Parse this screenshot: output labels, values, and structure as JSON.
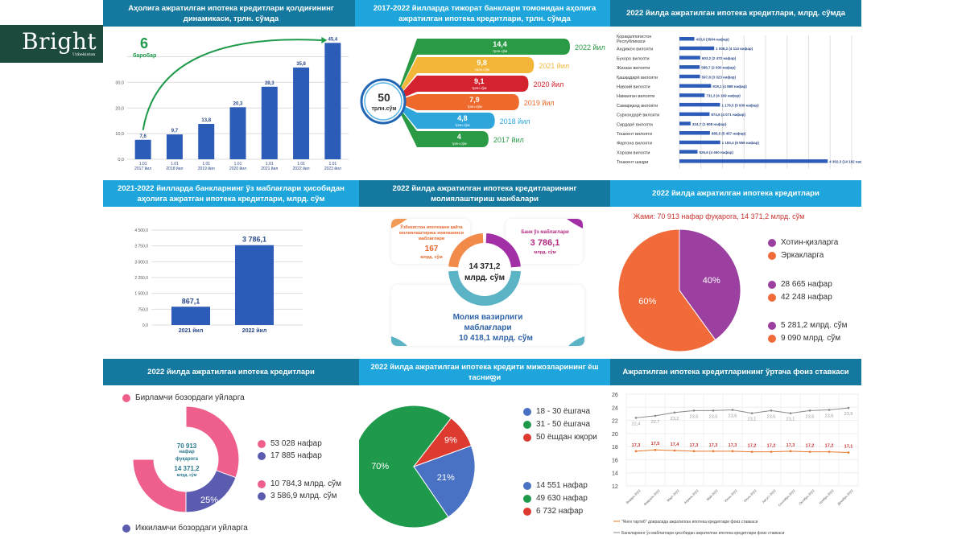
{
  "brand": {
    "name": "Bright",
    "sub": "Uzbekistan"
  },
  "colors": {
    "header_dark": "#15799f",
    "header_light": "#1ea6dc",
    "bar_blue": "#2d5cb8",
    "green": "#1e9a4a"
  },
  "panels": {
    "p1": {
      "title": "Аҳолига ажратилган ипотека кредитлари қолдиғининг динамикаси, трлн. сўмда",
      "growth_value": "6",
      "growth_label": "баробар"
    },
    "p2": {
      "title": "2017-2022 йилларда тижорат банклари томонидан аҳолига ажратилган ипотека кредитлари, трлн. сўмда",
      "total_value": "50",
      "total_unit": "трлн.сўм"
    },
    "p3": {
      "title": "2022 йилда ажратилган ипотека кредитлари, млрд. сўмда"
    },
    "p4": {
      "title": "2021-2022 йилларда банкларнинг ўз маблағлари ҳисобидан аҳолига ажратган ипотека кредитлари, млрд. сўм"
    },
    "p5": {
      "title": "2022 йилда ажратилган ипотека кредитларининг молиялаштириш манбалари",
      "center_value": "14 371,2",
      "center_unit": "млрд. сўм",
      "src_mortgage_label": "Ўзбекистон ипотекани қайта молиялаштириш компанияси маблағлари",
      "src_mortgage_value": "167",
      "src_mortgage_unit": "млрд. сўм",
      "src_bank_label": "Банк ўз маблағлари",
      "src_bank_value": "3 786,1",
      "src_bank_unit": "млрд. сўм",
      "src_mof_label_1": "Молия вазирлиги",
      "src_mof_label_2": "маблағлари",
      "src_mof_value": "10 418,1 млрд. сўм"
    },
    "p6": {
      "title": "2022 йилда ажратилган ипотека кредитлари",
      "total": "Жами: 70 913 нафар фуқарога, 14 371,2 млрд. сўм",
      "legend": [
        "Хотин-қизларга",
        "Эркакларга"
      ],
      "people": [
        "28 665 нафар",
        "42 248 нафар"
      ],
      "amounts": [
        "5 281,2 млрд. сўм",
        "9 090 млрд. сўм"
      ]
    },
    "p7": {
      "title": "2022 йилда ажратилган ипотека кредитлари",
      "legend_primary": "Бирламчи бозордаги уйларга",
      "legend_secondary": "Иккиламчи  бозордаги уйларга",
      "center_1": "70 913",
      "center_2": "нафар",
      "center_3": "фуқарога",
      "center_4": "14 371,2",
      "center_5": "млрд. сўм",
      "people": [
        "53 028 нафар",
        "17 885 нафар"
      ],
      "amounts": [
        "10 784,3 млрд. сўм",
        "3 586,9 млрд. сўм"
      ]
    },
    "p8": {
      "title": "2022 йилда ажратилган ипотека кредити мижозларининг ёш тасниფи",
      "legend": [
        "18 - 30 ёшгача",
        "31 - 50 ёшгача",
        "50 ёшдан юқори"
      ],
      "people": [
        "14 551 нафар",
        "49 630 нафар",
        "6 732 нафар"
      ]
    },
    "p9": {
      "title": "Ажратилган ипотека кредитларининг ўртача фоиз ставкаси"
    }
  },
  "chart_data": [
    {
      "id": "mortgage-balance",
      "type": "bar",
      "title": "Аҳолига ажратилган ипотека кредитлари қолдиғининг динамикаси, трлн. сўмда",
      "categories": [
        "1.01\n2017 йил",
        "1.01\n2018 йил",
        "1.01\n2019 йил",
        "1.01\n2020 йил",
        "1.01\n2021 йил",
        "1.01\n2022 йил",
        "1.01\n2023 йил"
      ],
      "cat_line1": [
        "1.01",
        "1.01",
        "1.01",
        "1.01",
        "1.01",
        "1.01",
        "1.01"
      ],
      "cat_line2": [
        "2017 йил",
        "2018 йил",
        "2019 йил",
        "2020 йил",
        "2021 йил",
        "2022 йил",
        "2023 йил"
      ],
      "values": [
        7.6,
        9.7,
        13.8,
        20.3,
        28.3,
        35.8,
        45.4
      ],
      "labels": [
        "7,6",
        "9,7",
        "13,8",
        "20,3",
        "28,3",
        "35,8",
        "45,4"
      ],
      "yticks": [
        "0,0",
        "10,0",
        "20,0",
        "30,0"
      ],
      "ytick_values": [
        0,
        10,
        20,
        30
      ],
      "ylim": [
        0,
        48
      ],
      "annotation": "6 баробар",
      "grid": true
    },
    {
      "id": "annual-mortgage",
      "type": "bar",
      "orientation": "horizontal",
      "categories": [
        "2022 йил",
        "2021 йил",
        "2020 йил",
        "2019 йил",
        "2018 йил",
        "2017 йил"
      ],
      "values": [
        14.4,
        9.8,
        9.1,
        7.9,
        4.8,
        4
      ],
      "labels": [
        "14,4",
        "9,8",
        "9,1",
        "7,9",
        "4,8",
        "4"
      ],
      "unit": "трлн.сўм",
      "colors": [
        "#2a9a45",
        "#f4b638",
        "#d4232f",
        "#ee6a2c",
        "#2ea6dc",
        "#2a9a45"
      ],
      "total": "50 трлн.сўм"
    },
    {
      "id": "regional",
      "type": "bar",
      "orientation": "horizontal",
      "categories": [
        "Қорақалпоғистон Республикаси",
        "Андижон вилояти",
        "Бухоро вилояти",
        "Жиззах вилояти",
        "Қашқадарё вилояти",
        "Навоий вилояти",
        "Наманган вилояти",
        "Самарқанд вилояти",
        "Сурхондарё вилояти",
        "Сирдарё вилояти",
        "Тошкент вилояти",
        "Фарғона вилояти",
        "Хоразм вилояти",
        "Тошкент шаҳри"
      ],
      "values": [
        433.6,
        1008.2,
        603.2,
        588.7,
        597.8,
        919.1,
        731.3,
        1178.5,
        874.6,
        324.7,
        885.5,
        1183.4,
        525.6,
        4302.3
      ],
      "labels": [
        "433,6",
        "1 008,2",
        "603,2",
        "588,7",
        "597,8",
        "919,1",
        "731,3",
        "1 178,5",
        "874,6",
        "324,7",
        "885,5",
        "1 183,4",
        "525,6",
        "4 302,3"
      ],
      "people": [
        "(3904 нафар)",
        "(4 114 нафар)",
        "(2 472 нафар)",
        "(2 930 нафар)",
        "(3 023 нафар)",
        "(4 888 нафар)",
        "(4 169 нафар)",
        "(5 939 нафар)",
        "(4 071 нафар)",
        "(1 908 нафар)",
        "(5 457 нафар)",
        "(6 559 нафар)",
        "(4 450 нафар)",
        "(14 182 нафар)"
      ],
      "xlim": [
        0,
        5000
      ],
      "grid": true
    },
    {
      "id": "bank-own-funds",
      "type": "bar",
      "categories": [
        "2021 йил",
        "2022 йил"
      ],
      "values": [
        867.1,
        3786.1
      ],
      "labels": [
        "867,1",
        "3 786,1"
      ],
      "yticks": [
        "0,0",
        "750,0",
        "1 500,0",
        "2 250,0",
        "3 000,0",
        "3 750,0",
        "4 500,0"
      ],
      "ytick_values": [
        0,
        750,
        1500,
        2250,
        3000,
        3750,
        4500
      ],
      "ylim": [
        0,
        4500
      ],
      "grid": true
    },
    {
      "id": "funding-sources",
      "type": "pie",
      "style": "donut",
      "categories": [
        "Ўзбекистон ипотекани қайта молиялаштириш компанияси маблағлари",
        "Банк ўз маблағлари",
        "Молия вазирлиги маблағлари"
      ],
      "values": [
        167,
        3786.1,
        10418.1
      ],
      "total": 14371.2
    },
    {
      "id": "gender",
      "type": "pie",
      "categories": [
        "Хотин-қизларга",
        "Эркакларга"
      ],
      "values": [
        40,
        60
      ],
      "labels": [
        "40%",
        "60%"
      ],
      "colors": [
        "#9b3fa0",
        "#f06a3a"
      ]
    },
    {
      "id": "market-type",
      "type": "pie",
      "style": "donut",
      "categories": [
        "Бирламчи бозордаги уйларга",
        "Иккиламчи бозордаги уйларга"
      ],
      "values": [
        75,
        25
      ],
      "labels": [
        "75%",
        "25%"
      ],
      "colors": [
        "#ef5f8c",
        "#5b5bb0"
      ]
    },
    {
      "id": "age-groups",
      "type": "pie",
      "categories": [
        "18 - 30 ёшгача",
        "31 - 50 ёшгача",
        "50 ёшдан юқори"
      ],
      "values": [
        21,
        70,
        9
      ],
      "labels": [
        "21%",
        "70%",
        "9%"
      ],
      "colors": [
        "#4a72c4",
        "#1f9a4c",
        "#dd3b30"
      ]
    },
    {
      "id": "interest-rate",
      "type": "line",
      "title": "Ажратилган ипотека кредитларининг ўртача фоиз ставкаси",
      "x": [
        "Январь 2022",
        "Февраль 2022",
        "Март 2022",
        "Апрель 2022",
        "Май 2022",
        "Июнь 2022",
        "Июль 2022",
        "Август 2022",
        "Сентябрь 2022",
        "Октябрь 2022",
        "Ноябрь 2022",
        "Декабрь 2022"
      ],
      "series": [
        {
          "name": "Банкларнинг ўз маблағлари ҳисобидан ажратилган ипотека кредитлари фоиз ставкаси",
          "values": [
            22.4,
            22.7,
            23.2,
            23.5,
            23.5,
            23.6,
            23.1,
            23.5,
            23.1,
            23.5,
            23.6,
            23.9
          ],
          "labels": [
            "22,4",
            "22,7",
            "23,2",
            "23,5",
            "23,5",
            "23,6",
            "23,1",
            "23,5",
            "23,1",
            "23,5",
            "23,6",
            "23,9"
          ],
          "color": "#8a8a8a"
        },
        {
          "name": "\"Янги тартиб\" доирасида ажратилган ипотека кредитлари фоиз ставкаси",
          "values": [
            17.3,
            17.5,
            17.4,
            17.3,
            17.3,
            17.3,
            17.2,
            17.2,
            17.3,
            17.2,
            17.2,
            17.1
          ],
          "labels": [
            "17,3",
            "17,5",
            "17,4",
            "17,3",
            "17,3",
            "17,3",
            "17,2",
            "17,2",
            "17,3",
            "17,2",
            "17,2",
            "17,1"
          ],
          "color": "#e8782b"
        }
      ],
      "yticks": [
        "12",
        "14",
        "16",
        "18",
        "20",
        "22",
        "24",
        "26"
      ],
      "ytick_values": [
        12,
        14,
        16,
        18,
        20,
        22,
        24,
        26
      ],
      "ylim": [
        12,
        26
      ],
      "grid": true,
      "legend_placement": "bottom"
    }
  ]
}
